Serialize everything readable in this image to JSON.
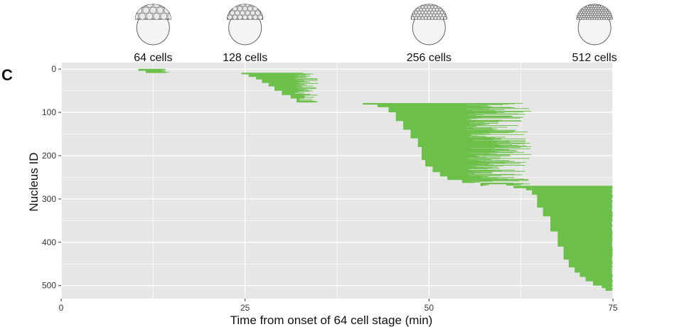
{
  "panel_label": "C",
  "stages": [
    {
      "label": "64 cells",
      "icon": "embryo-64-cell-icon",
      "x_time": 12.5
    },
    {
      "label": "128 cells",
      "icon": "embryo-128-cell-icon",
      "x_time": 25.0
    },
    {
      "label": "256 cells",
      "icon": "embryo-256-cell-icon",
      "x_time": 50.0
    },
    {
      "label": "512 cells",
      "icon": "embryo-512-cell-icon",
      "x_time": 72.5
    }
  ],
  "chart_data": {
    "type": "bar",
    "orientation": "horizontal-segments",
    "xlabel": "Time from onset of 64 cell stage (min)",
    "ylabel": "Nucleus ID",
    "xlim": [
      0,
      75
    ],
    "ylim": [
      -15,
      530
    ],
    "y_reversed": true,
    "x_ticks": [
      "0",
      "25",
      "50",
      "75"
    ],
    "y_ticks": [
      "0",
      "100",
      "200",
      "300",
      "400",
      "500"
    ],
    "grid": true,
    "colors": {
      "segment": "#6cc04a",
      "panel_bg": "#e6e6e6",
      "grid": "#ffffff"
    },
    "groups": [
      {
        "name": "",
        "id_start": 0,
        "id_end": 8,
        "start_steps": [
          [
            0,
            10.5
          ],
          [
            4,
            11.5
          ]
        ],
        "end_min": 13.5,
        "end_max": 14.8
      },
      {
        "name": "",
        "id_start": 9,
        "id_end": 76,
        "start_steps": [
          [
            9,
            24.5
          ],
          [
            12,
            25.5
          ],
          [
            18,
            26.5
          ],
          [
            24,
            27.3
          ],
          [
            32,
            28.2
          ],
          [
            40,
            29.0
          ],
          [
            50,
            30.0
          ],
          [
            60,
            31.2
          ],
          [
            68,
            32.0
          ]
        ],
        "end_min": 31.5,
        "end_max": 35.0
      },
      {
        "name": "",
        "id_start": 79,
        "id_end": 269,
        "start_steps": [
          [
            79,
            41.0
          ],
          [
            82,
            43.0
          ],
          [
            88,
            44.5
          ],
          [
            100,
            45.5
          ],
          [
            120,
            46.5
          ],
          [
            140,
            47.5
          ],
          [
            160,
            48.5
          ],
          [
            180,
            49.0
          ],
          [
            210,
            49.5
          ],
          [
            225,
            50.5
          ],
          [
            238,
            51.5
          ],
          [
            248,
            52.5
          ],
          [
            256,
            54.5
          ],
          [
            263,
            57.0
          ]
        ],
        "end_min": 55.0,
        "end_max": 64.0
      },
      {
        "name": "",
        "id_start": 264,
        "id_end": 268,
        "start_steps": [
          [
            264,
            60.5
          ]
        ],
        "end_min": 61.0,
        "end_max": 63.0
      },
      {
        "name": "",
        "id_start": 270,
        "id_end": 511,
        "start_steps": [
          [
            270,
            61.5
          ],
          [
            275,
            63.2
          ],
          [
            280,
            64.0
          ],
          [
            290,
            64.7
          ],
          [
            320,
            65.5
          ],
          [
            340,
            66.5
          ],
          [
            375,
            67.5
          ],
          [
            410,
            68.3
          ],
          [
            440,
            69.0
          ],
          [
            458,
            69.8
          ],
          [
            470,
            70.5
          ],
          [
            480,
            71.3
          ],
          [
            490,
            72.3
          ],
          [
            500,
            73.5
          ],
          [
            506,
            74.0
          ]
        ],
        "end_min": 74.8,
        "end_max": 75.0
      }
    ]
  }
}
